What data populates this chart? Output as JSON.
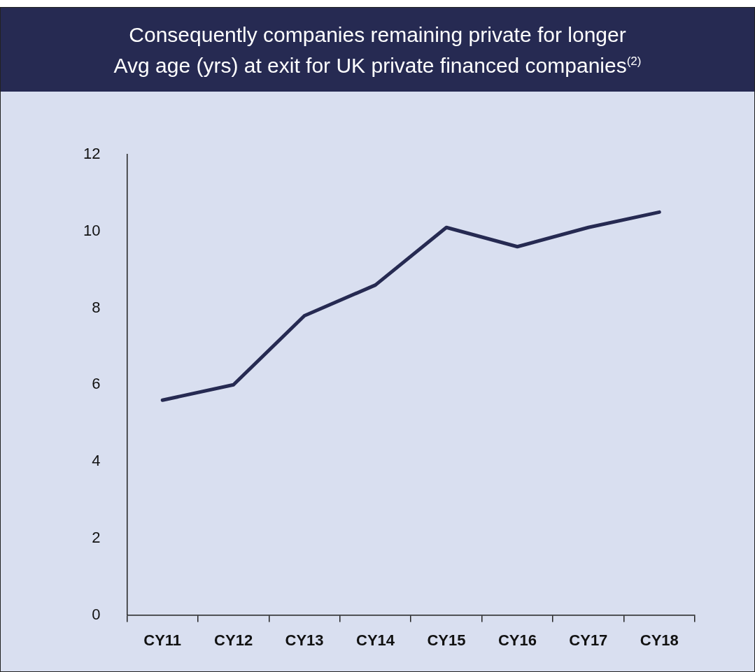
{
  "chart_data": {
    "type": "line",
    "title": "Consequently companies remaining private for longer",
    "subtitle": "Avg age (yrs) at exit for UK private financed companies$^{(2)}$",
    "categories": [
      "CY11",
      "CY12",
      "CY13",
      "CY14",
      "CY15",
      "CY16",
      "CY17",
      "CY18"
    ],
    "series": [
      {
        "color": "#262a52",
        "values": [
          5.6,
          6.0,
          7.8,
          8.6,
          10.1,
          9.6,
          10.1,
          10.5
        ]
      }
    ],
    "ylim": [
      0,
      12
    ],
    "yticks": [
      0,
      2,
      4,
      6,
      8,
      10,
      12
    ],
    "grid": false,
    "legend": false,
    "marker": "none",
    "line_style": "solid"
  }
}
